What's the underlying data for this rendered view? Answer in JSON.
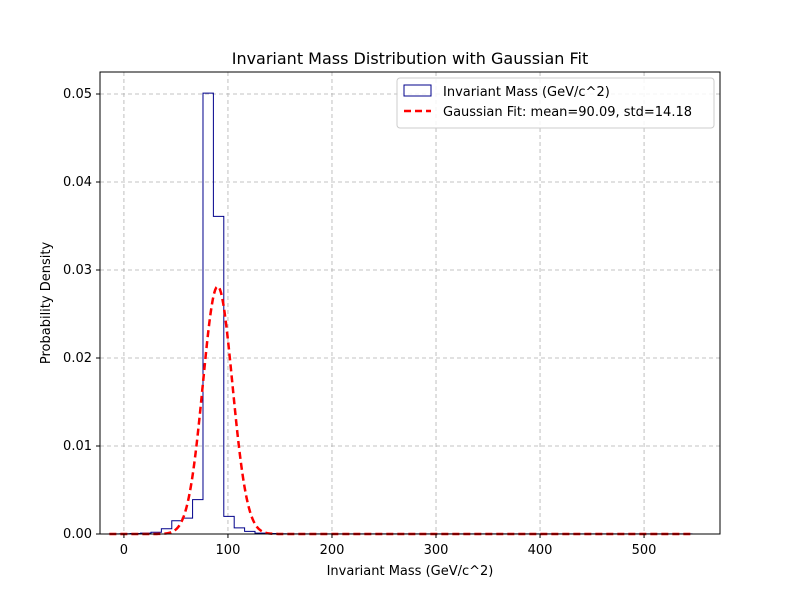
{
  "chart_data": {
    "type": "histogram",
    "title": "Invariant Mass Distribution with Gaussian Fit",
    "xlabel": "Invariant Mass (GeV/c^2)",
    "ylabel": "Probability Density",
    "xlim": [
      -23,
      573
    ],
    "ylim": [
      0,
      0.0525
    ],
    "xticks": [
      0,
      100,
      200,
      300,
      400,
      500
    ],
    "yticks": [
      0.0,
      0.01,
      0.02,
      0.03,
      0.04,
      0.05
    ],
    "ytick_labels": [
      "0.00",
      "0.01",
      "0.02",
      "0.03",
      "0.04",
      "0.05"
    ],
    "grid": true,
    "legend_position": "upper-right",
    "histogram": {
      "name": "Invariant Mass (GeV/c^2)",
      "color": "#00008b",
      "bin_edges": [
        -14,
        -4,
        6,
        16,
        26,
        36,
        46,
        56,
        66,
        76,
        86,
        96,
        106,
        116,
        126,
        136,
        146,
        156,
        166,
        176,
        186,
        196,
        206,
        216,
        226,
        236,
        246,
        256,
        266,
        276,
        286,
        296,
        306,
        316,
        326,
        336,
        346,
        356,
        366,
        376,
        386,
        396,
        406,
        416,
        426,
        436,
        446,
        456,
        466,
        476,
        486,
        496,
        506,
        516,
        526,
        536,
        546
      ],
      "densities": [
        2e-05,
        3e-05,
        5e-05,
        0.0001,
        0.0002,
        0.0006,
        0.0015,
        0.0018,
        0.0039,
        0.0501,
        0.0361,
        0.002,
        0.0007,
        0.0003,
        0.0001,
        5e-05,
        3e-05,
        2e-05,
        2e-05,
        1e-05,
        1e-05,
        1e-05,
        1e-05,
        1e-05,
        1e-05,
        1e-05,
        1e-05,
        1e-05,
        1e-05,
        1e-05,
        1e-05,
        1e-05,
        1e-05,
        1e-05,
        1e-05,
        1e-05,
        1e-05,
        1e-05,
        1e-05,
        1e-05,
        1e-05,
        1e-05,
        1e-05,
        1e-05,
        1e-05,
        1e-05,
        1e-05,
        1e-05,
        1e-05,
        1e-05,
        1e-05,
        1e-05,
        1e-05,
        1e-05,
        1e-05,
        1e-05
      ]
    },
    "fit": {
      "name": "Gaussian Fit: mean=90.09, std=14.18",
      "color": "#ff0000",
      "style": "dashed",
      "mean": 90.09,
      "std": 14.18,
      "x_range": [
        -14,
        545
      ]
    }
  }
}
